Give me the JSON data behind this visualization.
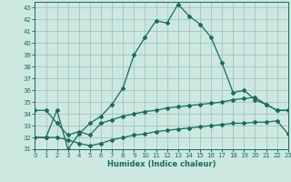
{
  "xlabel": "Humidex (Indice chaleur)",
  "bg_color": "#cce8e0",
  "grid_color": "#9bbfb8",
  "line_color": "#1a6b5a",
  "xlim": [
    0,
    23
  ],
  "ylim": [
    31,
    43.5
  ],
  "yticks": [
    31,
    32,
    33,
    34,
    35,
    36,
    37,
    38,
    39,
    40,
    41,
    42,
    43
  ],
  "xticks": [
    0,
    1,
    2,
    3,
    4,
    5,
    6,
    7,
    8,
    9,
    10,
    11,
    12,
    13,
    14,
    15,
    16,
    17,
    18,
    19,
    20,
    21,
    22,
    23
  ],
  "line1_y": [
    32.0,
    32.0,
    34.3,
    31.0,
    32.3,
    33.2,
    33.8,
    34.8,
    36.2,
    39.0,
    40.5,
    41.9,
    41.7,
    43.3,
    42.3,
    41.6,
    40.5,
    38.3,
    35.8,
    36.0,
    35.2,
    34.8,
    34.3,
    34.3
  ],
  "line2_y": [
    34.3,
    34.3,
    33.2,
    32.2,
    32.5,
    32.2,
    33.2,
    33.5,
    33.8,
    34.0,
    34.2,
    34.3,
    34.5,
    34.6,
    34.7,
    34.8,
    34.9,
    35.0,
    35.2,
    35.3,
    35.4,
    34.8,
    34.3,
    34.3
  ],
  "line3_y": [
    32.0,
    32.0,
    32.0,
    31.8,
    31.5,
    31.3,
    31.5,
    31.8,
    32.0,
    32.2,
    32.3,
    32.5,
    32.6,
    32.7,
    32.8,
    32.9,
    33.0,
    33.1,
    33.2,
    33.2,
    33.3,
    33.3,
    33.4,
    32.3
  ]
}
